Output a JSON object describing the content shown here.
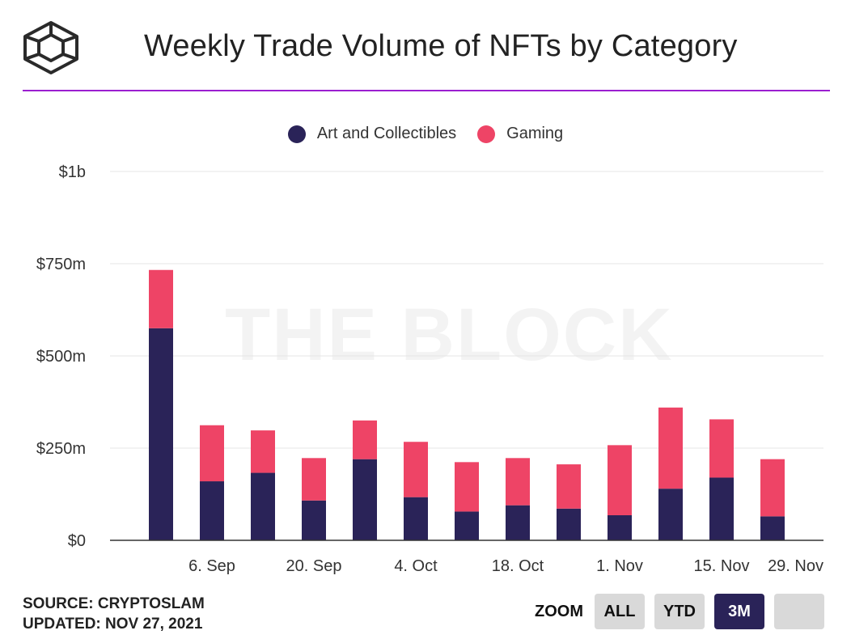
{
  "header": {
    "title": "Weekly Trade Volume of NFTs by Category",
    "logo_icon": "cube-logo-icon",
    "rule_color": "#9b1fd0"
  },
  "watermark": "THE BLOCK",
  "legend": [
    {
      "label": "Art and Collectibles",
      "color": "#2a2358"
    },
    {
      "label": "Gaming",
      "color": "#ee4466"
    }
  ],
  "footer": {
    "source": "SOURCE: CRYPTOSLAM",
    "updated": "UPDATED: NOV 27, 2021"
  },
  "zoom": {
    "label": "ZOOM",
    "buttons": [
      "ALL",
      "YTD",
      "3M",
      ""
    ],
    "active": "3M"
  },
  "chart_data": {
    "type": "bar",
    "stacked": true,
    "title": "Weekly Trade Volume of NFTs by Category",
    "y_ticks": [
      "$0",
      "$250m",
      "$500m",
      "$750m",
      "$1b"
    ],
    "ylim": [
      0,
      1000
    ],
    "y_unit": "millions USD",
    "x_ticks": [
      "6. Sep",
      "20. Sep",
      "4. Oct",
      "18. Oct",
      "1. Nov",
      "15. Nov",
      "29. Nov"
    ],
    "x_axis": {
      "start": "2021-08-23",
      "end": "2021-11-29",
      "tick_dates": [
        "2021-09-06",
        "2021-09-20",
        "2021-10-04",
        "2021-10-18",
        "2021-11-01",
        "2021-11-15",
        "2021-11-29"
      ]
    },
    "grid": true,
    "legend_position": "top-center",
    "x": [
      "2021-08-30",
      "2021-09-06",
      "2021-09-13",
      "2021-09-20",
      "2021-09-27",
      "2021-10-04",
      "2021-10-11",
      "2021-10-18",
      "2021-10-25",
      "2021-11-01",
      "2021-11-08",
      "2021-11-15",
      "2021-11-22"
    ],
    "series": [
      {
        "name": "Art and Collectibles",
        "color": "#2a2358",
        "values": [
          575,
          160,
          183,
          108,
          220,
          117,
          78,
          95,
          86,
          68,
          140,
          170,
          65
        ]
      },
      {
        "name": "Gaming",
        "color": "#ee4466",
        "values": [
          158,
          152,
          115,
          115,
          105,
          150,
          134,
          128,
          120,
          190,
          220,
          158,
          155
        ]
      }
    ]
  }
}
